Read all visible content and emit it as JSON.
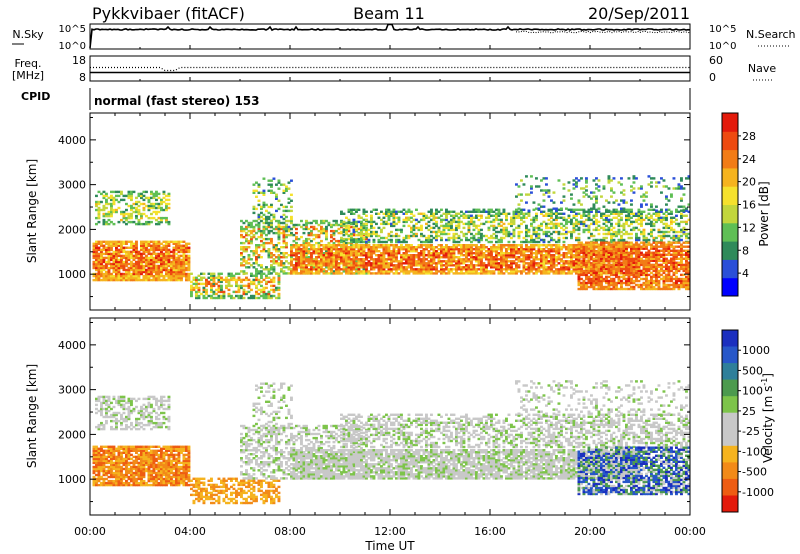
{
  "header": {
    "station": "Pykkvibaer (fitACF)",
    "beam": "Beam 11",
    "date": "20/Sep/2011"
  },
  "nsky_panel": {
    "left_label": "N.Sky",
    "right_label": "N.Search",
    "left_ticks": [
      "10^5",
      "10^0"
    ],
    "right_ticks": [
      "10^5",
      "10^0"
    ]
  },
  "freq_panel": {
    "left_label_1": "Freq.",
    "left_label_2": "[MHz]",
    "left_ticks": [
      "18",
      "8"
    ],
    "right_ticks": [
      "60",
      "0"
    ],
    "right_label": "Nave"
  },
  "cpid": {
    "label": "CPID",
    "mode_text": "normal (fast stereo) 153"
  },
  "chart_data": [
    {
      "type": "heatmap",
      "name": "power",
      "ylabel": "Slant Range [km]",
      "ylim": [
        200,
        4600
      ],
      "yticks": [
        1000,
        2000,
        3000,
        4000
      ],
      "xlim_hours": [
        0,
        24
      ],
      "colorbar": {
        "label": "Power [dB]",
        "range": [
          0,
          32
        ],
        "ticks": [
          "4",
          "8",
          "12",
          "16",
          "20",
          "24",
          "28"
        ],
        "colors": [
          "#0000ff",
          "#2a4fd8",
          "#2f8a5a",
          "#5fbf55",
          "#c2d63c",
          "#f5e12d",
          "#f5b31e",
          "#f27c16",
          "#ee4a10",
          "#e31a0b"
        ]
      }
    },
    {
      "type": "heatmap",
      "name": "velocity",
      "ylabel": "Slant Range [km]",
      "ylim": [
        200,
        4600
      ],
      "yticks": [
        1000,
        2000,
        3000,
        4000
      ],
      "xlim_hours": [
        0,
        24
      ],
      "colorbar": {
        "label": "Velocity [m s",
        "label_sup": "-1",
        "label_close": "]",
        "ticks": [
          "1000",
          "500",
          "100",
          "25",
          "-25",
          "-100",
          "-500",
          "-1000"
        ],
        "colors": [
          "#1b2fbf",
          "#2757c9",
          "#2e7f9a",
          "#4c9a4e",
          "#7dc44a",
          "#c8c8c8",
          "#c8c8c8",
          "#f5b31e",
          "#f28a18",
          "#ee5c12",
          "#e31a0b"
        ]
      }
    }
  ],
  "x_axis": {
    "label": "Time UT",
    "ticks": [
      "00:00",
      "04:00",
      "08:00",
      "12:00",
      "16:00",
      "20:00",
      "00:00"
    ]
  }
}
